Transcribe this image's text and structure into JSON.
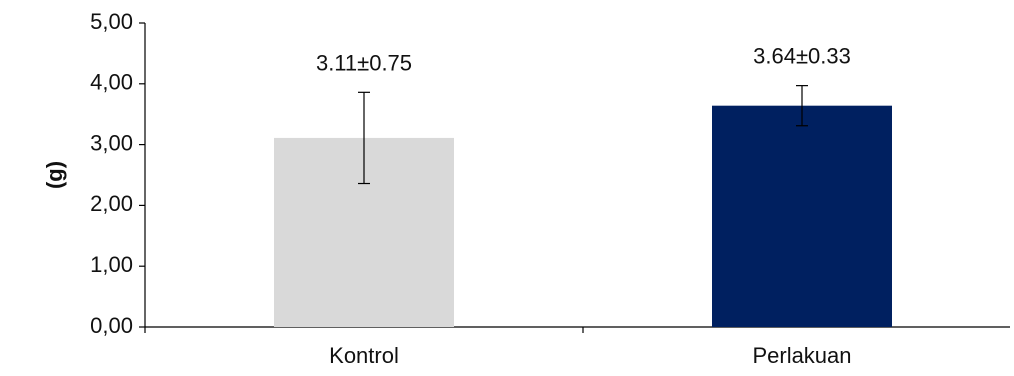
{
  "chart_data": {
    "type": "bar",
    "title": "",
    "xlabel": "",
    "ylabel": "(g)",
    "categories": [
      "Kontrol",
      "Perlakuan"
    ],
    "values": [
      3.11,
      3.64
    ],
    "errors": [
      0.75,
      0.33
    ],
    "data_labels": [
      "3.11±0.75",
      "3.64±0.33"
    ],
    "bar_colors": [
      "#d9d9d9",
      "#002060"
    ],
    "ylim": [
      0,
      5
    ],
    "yticks": [
      0,
      1,
      2,
      3,
      4,
      5
    ],
    "ytick_labels": [
      "0,00",
      "1,00",
      "2,00",
      "3,00",
      "4,00",
      "5,00"
    ],
    "grid": false,
    "legend": "none"
  }
}
